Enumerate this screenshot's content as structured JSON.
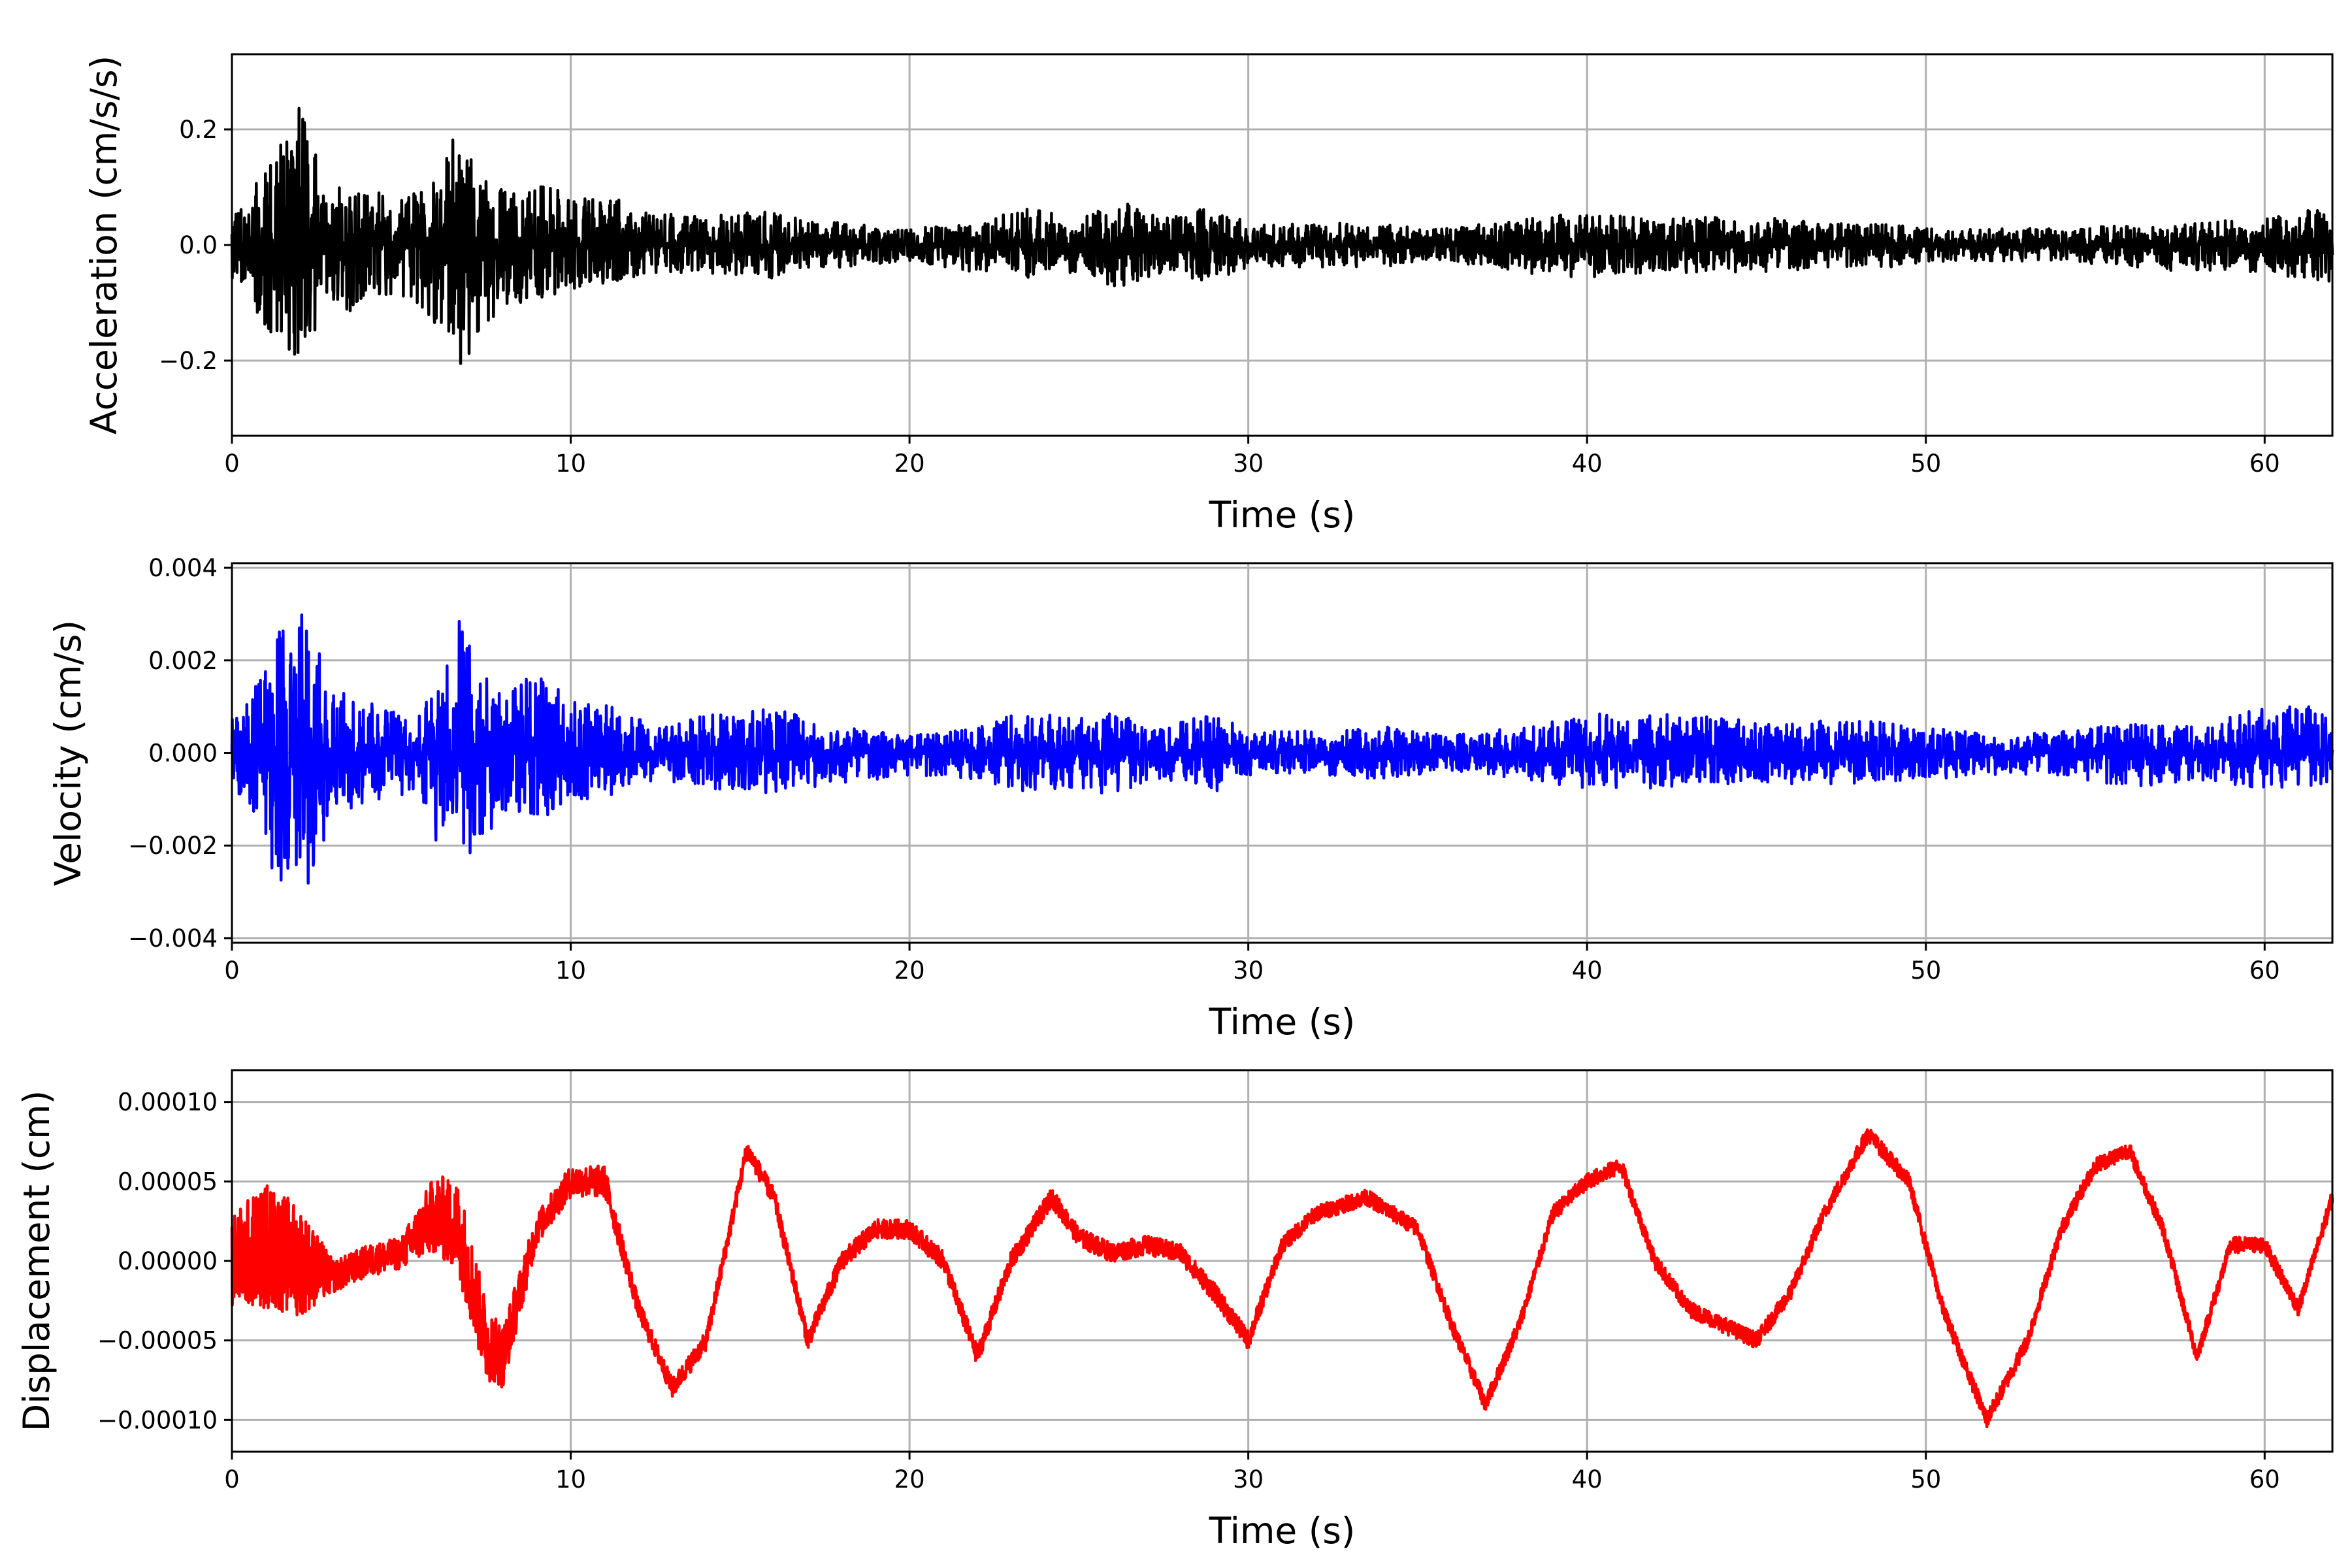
{
  "chart_data": [
    {
      "type": "line",
      "ylabel": "Acceleration (cm/s/s)",
      "xlabel": "Time (s)",
      "xlim": [
        0,
        62
      ],
      "ylim": [
        -0.33,
        0.33
      ],
      "xticks": [
        0,
        10,
        20,
        30,
        40,
        50,
        60
      ],
      "xtick_labels": [
        "0",
        "10",
        "20",
        "30",
        "40",
        "50",
        "60"
      ],
      "yticks": [
        -0.2,
        0.0,
        0.2
      ],
      "ytick_labels": [
        "−0.2",
        "0.0",
        "0.2"
      ],
      "grid": true,
      "color": "#000000",
      "series": [
        {
          "x": [
            0,
            0.5,
            1.2,
            1.6,
            2.0,
            2.2,
            2.4,
            2.8,
            3.5,
            4.2,
            5.0,
            5.8,
            6.2,
            6.7,
            7.2,
            8.0,
            9.0,
            10.0,
            11.0,
            12.5,
            14.0,
            15.0,
            16.0,
            18.0,
            20.0,
            22.0,
            23.5,
            25.0,
            26.2,
            27.5,
            29.0,
            30.0,
            32.0,
            34.0,
            35.0,
            36.0,
            38.0,
            40.0,
            42.0,
            44.0,
            45.5,
            47.0,
            49.0,
            50.0,
            52.0,
            54.0,
            56.0,
            58.0,
            60.0,
            62.0
          ],
          "peak_values": [
            0.05,
            0.09,
            0.18,
            0.21,
            0.3,
            0.25,
            0.22,
            0.1,
            0.12,
            0.1,
            0.09,
            0.12,
            0.14,
            0.22,
            0.13,
            0.1,
            0.12,
            0.09,
            0.09,
            0.06,
            0.05,
            0.06,
            0.06,
            0.04,
            0.03,
            0.04,
            0.07,
            0.05,
            0.08,
            0.05,
            0.07,
            0.04,
            0.04,
            0.04,
            0.03,
            0.03,
            0.05,
            0.06,
            0.05,
            0.05,
            0.05,
            0.04,
            0.04,
            0.03,
            0.03,
            0.03,
            0.04,
            0.04,
            0.05,
            0.07
          ],
          "trough_values": [
            -0.06,
            -0.1,
            -0.17,
            -0.2,
            -0.2,
            -0.19,
            -0.19,
            -0.1,
            -0.12,
            -0.09,
            -0.09,
            -0.13,
            -0.17,
            -0.23,
            -0.18,
            -0.12,
            -0.1,
            -0.08,
            -0.07,
            -0.05,
            -0.05,
            -0.06,
            -0.06,
            -0.04,
            -0.03,
            -0.05,
            -0.06,
            -0.05,
            -0.08,
            -0.05,
            -0.07,
            -0.04,
            -0.04,
            -0.04,
            -0.03,
            -0.03,
            -0.05,
            -0.06,
            -0.05,
            -0.05,
            -0.05,
            -0.04,
            -0.04,
            -0.03,
            -0.03,
            -0.03,
            -0.04,
            -0.05,
            -0.05,
            -0.07
          ]
        }
      ]
    },
    {
      "type": "line",
      "ylabel": "Velocity (cm/s)",
      "xlabel": "Time (s)",
      "xlim": [
        0,
        62
      ],
      "ylim": [
        -0.0041,
        0.0041
      ],
      "xticks": [
        0,
        10,
        20,
        30,
        40,
        50,
        60
      ],
      "xtick_labels": [
        "0",
        "10",
        "20",
        "30",
        "40",
        "50",
        "60"
      ],
      "yticks": [
        -0.004,
        -0.002,
        0.0,
        0.002,
        0.004
      ],
      "ytick_labels": [
        "−0.004",
        "−0.002",
        "0.000",
        "0.002",
        "0.004"
      ],
      "grid": true,
      "color": "#0000ff",
      "series": [
        {
          "x": [
            0,
            0.5,
            1.2,
            1.6,
            2.1,
            2.3,
            2.8,
            3.5,
            4.5,
            5.5,
            6.2,
            6.7,
            7.2,
            8.0,
            9.0,
            10.0,
            11.0,
            12.5,
            14.0,
            15.0,
            16.0,
            18.0,
            20.0,
            22.0,
            23.5,
            25.0,
            26.0,
            27.5,
            29.2,
            30.0,
            32.0,
            34.0,
            36.0,
            38.0,
            40.0,
            42.0,
            44.0,
            46.0,
            48.0,
            50.0,
            52.0,
            54.0,
            56.0,
            58.0,
            59.5,
            62.0
          ],
          "peak_values": [
            0.0008,
            0.0012,
            0.0026,
            0.0029,
            0.0038,
            0.0027,
            0.002,
            0.0013,
            0.0011,
            0.0008,
            0.002,
            0.0037,
            0.0019,
            0.0014,
            0.0018,
            0.0013,
            0.0012,
            0.0006,
            0.0009,
            0.001,
            0.001,
            0.0006,
            0.0004,
            0.0006,
            0.001,
            0.0008,
            0.0009,
            0.0006,
            0.0011,
            0.0005,
            0.0005,
            0.0006,
            0.0004,
            0.0006,
            0.0009,
            0.0009,
            0.0008,
            0.0007,
            0.0008,
            0.0006,
            0.0004,
            0.0005,
            0.0007,
            0.0006,
            0.001,
            0.0011
          ],
          "trough_values": [
            -0.0007,
            -0.0013,
            -0.0027,
            -0.0031,
            -0.0034,
            -0.0031,
            -0.0018,
            -0.0013,
            -0.001,
            -0.0009,
            -0.0024,
            -0.0026,
            -0.0021,
            -0.0015,
            -0.0015,
            -0.0012,
            -0.001,
            -0.0006,
            -0.0008,
            -0.0009,
            -0.0009,
            -0.0007,
            -0.0005,
            -0.0006,
            -0.0009,
            -0.0008,
            -0.001,
            -0.0006,
            -0.0009,
            -0.0005,
            -0.0005,
            -0.0006,
            -0.0004,
            -0.0006,
            -0.0008,
            -0.0008,
            -0.0007,
            -0.0007,
            -0.0007,
            -0.0006,
            -0.0005,
            -0.0005,
            -0.0008,
            -0.0006,
            -0.0008,
            -0.0008
          ]
        }
      ]
    },
    {
      "type": "line",
      "ylabel": "Displacement (cm)",
      "xlabel": "Time (s)",
      "xlim": [
        0,
        62
      ],
      "ylim": [
        -0.00012,
        0.00012
      ],
      "xticks": [
        0,
        10,
        20,
        30,
        40,
        50,
        60
      ],
      "xtick_labels": [
        "0",
        "10",
        "20",
        "30",
        "40",
        "50",
        "60"
      ],
      "yticks": [
        -0.0001,
        -5e-05,
        0.0,
        5e-05,
        0.0001
      ],
      "ytick_labels": [
        "−0.00010",
        "−0.00005",
        "0.00000",
        "0.00005",
        "0.00010"
      ],
      "grid": true,
      "color": "#ff0000",
      "series": [
        {
          "x": [
            0,
            1.0,
            2.0,
            3.0,
            4.0,
            5.0,
            6.0,
            6.7,
            7.5,
            8.0,
            9.0,
            10.0,
            11.0,
            12.0,
            13.0,
            14.0,
            15.2,
            16.0,
            17.0,
            18.0,
            19.0,
            20.0,
            21.0,
            22.0,
            23.0,
            24.2,
            25.0,
            26.0,
            27.0,
            28.0,
            29.0,
            30.0,
            31.0,
            32.0,
            33.5,
            35.0,
            36.0,
            37.0,
            38.0,
            39.0,
            40.0,
            41.0,
            42.0,
            43.0,
            44.0,
            45.0,
            46.0,
            47.0,
            48.3,
            49.5,
            50.5,
            51.8,
            53.0,
            54.0,
            55.0,
            56.0,
            57.0,
            58.0,
            59.0,
            60.0,
            61.0,
            62.0
          ],
          "values": [
            0.0,
            1e-05,
            0.0,
            -1e-05,
            0.0,
            5e-06,
            3e-05,
            2e-05,
            -5e-05,
            -6e-05,
            2e-05,
            5e-05,
            5e-05,
            -3e-05,
            -8e-05,
            -5e-05,
            7e-05,
            4e-05,
            -5e-05,
            0.0,
            2e-05,
            2e-05,
            0.0,
            -6e-05,
            0.0,
            4e-05,
            1.5e-05,
            5e-06,
            1e-05,
            5e-06,
            -2e-05,
            -5e-05,
            1e-05,
            3e-05,
            4e-05,
            2e-05,
            -4e-05,
            -9e-05,
            -4e-05,
            3e-05,
            5e-05,
            6e-05,
            0.0,
            -3e-05,
            -4e-05,
            -5e-05,
            -2e-05,
            3e-05,
            8e-05,
            5e-05,
            -3e-05,
            -0.0001,
            -5e-05,
            2e-05,
            6e-05,
            7e-05,
            2e-05,
            -6e-05,
            1e-05,
            1e-05,
            -3e-05,
            4e-05
          ],
          "noise": [
            3e-05,
            4e-05,
            3.5e-05,
            1e-05,
            1e-05,
            1e-05,
            2.5e-05,
            3e-05,
            2.5e-05,
            2e-05,
            1e-05,
            1e-05,
            1e-05,
            6e-06,
            6e-06,
            6e-06,
            6e-06,
            6e-06,
            6e-06,
            6e-06,
            6e-06,
            6e-06,
            6e-06,
            6e-06,
            6e-06,
            6e-06,
            6e-06,
            6e-06,
            6e-06,
            6e-06,
            6e-06,
            6e-06,
            5e-06,
            5e-06,
            5e-06,
            5e-06,
            5e-06,
            5e-06,
            5e-06,
            5e-06,
            5e-06,
            5e-06,
            5e-06,
            5e-06,
            5e-06,
            5e-06,
            5e-06,
            5e-06,
            5e-06,
            5e-06,
            5e-06,
            5e-06,
            5e-06,
            5e-06,
            5e-06,
            5e-06,
            5e-06,
            5e-06,
            5e-06,
            5e-06,
            5e-06,
            5e-06
          ]
        }
      ]
    }
  ]
}
